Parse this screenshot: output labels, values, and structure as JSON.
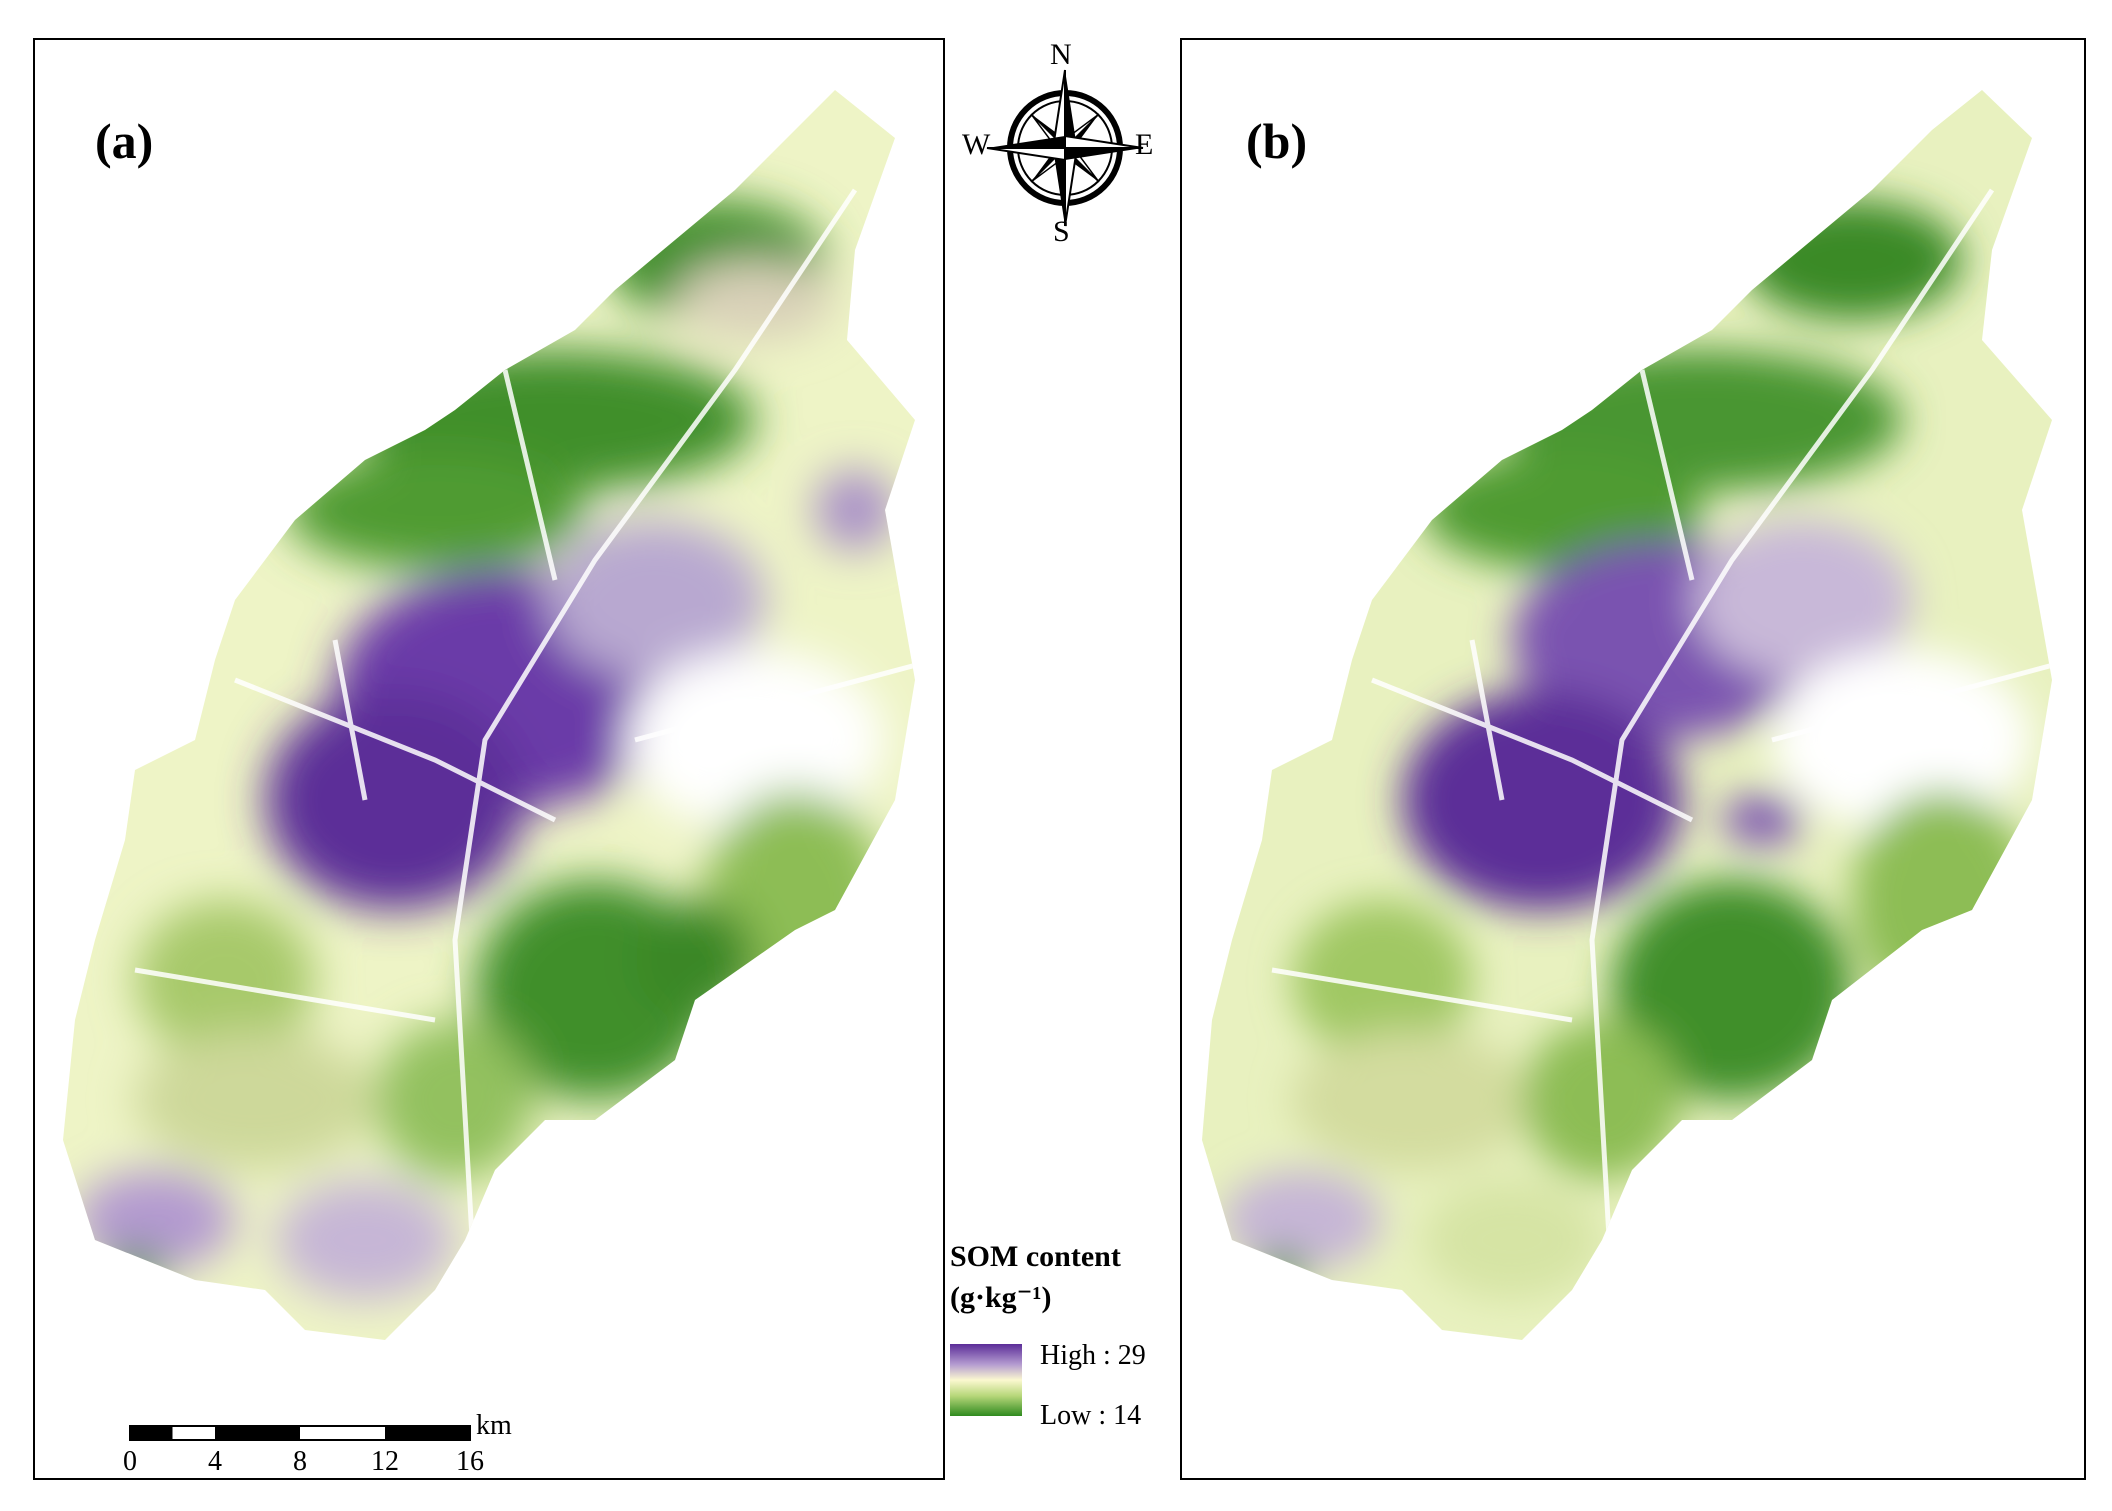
{
  "panels": [
    {
      "label": "(a)"
    },
    {
      "label": "(b)"
    }
  ],
  "compass": {
    "north": "N",
    "south": "S",
    "west": "W",
    "east": "E"
  },
  "legend": {
    "title": "SOM content",
    "unit": "(g·kg⁻¹)",
    "high": "High : 29",
    "low": "Low : 14",
    "colors": {
      "high": "#5b2d98",
      "mid": "#fbf8d0",
      "low": "#2f8a1f"
    }
  },
  "scalebar": {
    "ticks": [
      "0",
      "4",
      "8",
      "12",
      "16"
    ],
    "unit": "km"
  }
}
